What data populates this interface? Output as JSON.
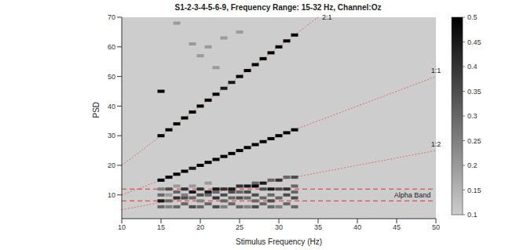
{
  "chart_data": {
    "type": "heatmap",
    "title": "S1-2-3-4-5-6-9, Frequency Range: 15-32 Hz, Channel:Oz",
    "x_label": "Stimulus Frequency (Hz)",
    "y_label": "PSD",
    "xlim": [
      10,
      50
    ],
    "xticks": [
      10,
      15,
      20,
      25,
      30,
      35,
      40,
      45,
      50
    ],
    "ylim": [
      2,
      70
    ],
    "yticks": [
      10,
      20,
      30,
      40,
      50,
      60,
      70
    ],
    "cells": [
      [
        15,
        30,
        0.5
      ],
      [
        15,
        15,
        0.5
      ],
      [
        15,
        45,
        0.5
      ],
      [
        15,
        12,
        0.25
      ],
      [
        15,
        10,
        0.3
      ],
      [
        15,
        8,
        0.45
      ],
      [
        15,
        6,
        0.3
      ],
      [
        16,
        32,
        0.5
      ],
      [
        16,
        16,
        0.5
      ],
      [
        16,
        12,
        0.35
      ],
      [
        16,
        10,
        0.2
      ],
      [
        16,
        8,
        0.3
      ],
      [
        16,
        6,
        0.25
      ],
      [
        17,
        34,
        0.5
      ],
      [
        17,
        17,
        0.5
      ],
      [
        17,
        68,
        0.2
      ],
      [
        17,
        13,
        0.2
      ],
      [
        17,
        11,
        0.3
      ],
      [
        17,
        9,
        0.4
      ],
      [
        17,
        6,
        0.3
      ],
      [
        18,
        36,
        0.5
      ],
      [
        18,
        18,
        0.5
      ],
      [
        18,
        12,
        0.4
      ],
      [
        18,
        10,
        0.25
      ],
      [
        18,
        9,
        0.35
      ],
      [
        18,
        7,
        0.3
      ],
      [
        19,
        38,
        0.5
      ],
      [
        19,
        19,
        0.45
      ],
      [
        19,
        61,
        0.2
      ],
      [
        19,
        13,
        0.2
      ],
      [
        19,
        11,
        0.45
      ],
      [
        19,
        9,
        0.3
      ],
      [
        19,
        6,
        0.35
      ],
      [
        20,
        40,
        0.5
      ],
      [
        20,
        20,
        0.5
      ],
      [
        20,
        57,
        0.2
      ],
      [
        20,
        12,
        0.4
      ],
      [
        20,
        10,
        0.35
      ],
      [
        20,
        8,
        0.25
      ],
      [
        20,
        6,
        0.3
      ],
      [
        21,
        42,
        0.5
      ],
      [
        21,
        21,
        0.5
      ],
      [
        21,
        60,
        0.2
      ],
      [
        21,
        14,
        0.2
      ],
      [
        21,
        11,
        0.45
      ],
      [
        21,
        10,
        0.3
      ],
      [
        21,
        7,
        0.3
      ],
      [
        22,
        44,
        0.5
      ],
      [
        22,
        22,
        0.5
      ],
      [
        22,
        53,
        0.2
      ],
      [
        22,
        12,
        0.45
      ],
      [
        22,
        11,
        0.3
      ],
      [
        22,
        9,
        0.4
      ],
      [
        22,
        6,
        0.35
      ],
      [
        23,
        46,
        0.45
      ],
      [
        23,
        23,
        0.5
      ],
      [
        23,
        63,
        0.2
      ],
      [
        23,
        12,
        0.4
      ],
      [
        23,
        10,
        0.35
      ],
      [
        23,
        8,
        0.3
      ],
      [
        23,
        6,
        0.25
      ],
      [
        24,
        48,
        0.45
      ],
      [
        24,
        24,
        0.5
      ],
      [
        24,
        12,
        0.45
      ],
      [
        24,
        11,
        0.35
      ],
      [
        24,
        9,
        0.3
      ],
      [
        24,
        7,
        0.3
      ],
      [
        25,
        50,
        0.5
      ],
      [
        25,
        25,
        0.5
      ],
      [
        25,
        65,
        0.2
      ],
      [
        25,
        13,
        0.4
      ],
      [
        25,
        11,
        0.3
      ],
      [
        25,
        9,
        0.35
      ],
      [
        25,
        6,
        0.3
      ],
      [
        26,
        52,
        0.5
      ],
      [
        26,
        26,
        0.5
      ],
      [
        26,
        13,
        0.45
      ],
      [
        26,
        11,
        0.35
      ],
      [
        26,
        9,
        0.3
      ],
      [
        26,
        6,
        0.25
      ],
      [
        27,
        54,
        0.5
      ],
      [
        27,
        27,
        0.5
      ],
      [
        27,
        14,
        0.3
      ],
      [
        27,
        13,
        0.5
      ],
      [
        27,
        10,
        0.35
      ],
      [
        27,
        8,
        0.3
      ],
      [
        27,
        6,
        0.35
      ],
      [
        28,
        56,
        0.5
      ],
      [
        28,
        28,
        0.5
      ],
      [
        28,
        14,
        0.45
      ],
      [
        28,
        12,
        0.35
      ],
      [
        28,
        9,
        0.3
      ],
      [
        28,
        7,
        0.3
      ],
      [
        29,
        58,
        0.5
      ],
      [
        29,
        29,
        0.5
      ],
      [
        29,
        15,
        0.3
      ],
      [
        29,
        12,
        0.45
      ],
      [
        29,
        10,
        0.3
      ],
      [
        29,
        8,
        0.35
      ],
      [
        29,
        6,
        0.3
      ],
      [
        30,
        60,
        0.5
      ],
      [
        30,
        30,
        0.5
      ],
      [
        30,
        15,
        0.4
      ],
      [
        30,
        12,
        0.35
      ],
      [
        30,
        9,
        0.3
      ],
      [
        30,
        6,
        0.25
      ],
      [
        31,
        62,
        0.5
      ],
      [
        31,
        31,
        0.5
      ],
      [
        31,
        16,
        0.3
      ],
      [
        31,
        12,
        0.4
      ],
      [
        31,
        10,
        0.35
      ],
      [
        31,
        7,
        0.3
      ],
      [
        32,
        64,
        0.5
      ],
      [
        32,
        32,
        0.5
      ],
      [
        32,
        16,
        0.35
      ],
      [
        32,
        13,
        0.3
      ],
      [
        32,
        11,
        0.3
      ],
      [
        32,
        9,
        0.35
      ],
      [
        32,
        6,
        0.3
      ]
    ],
    "colorbar": {
      "range": [
        0.1,
        0.5
      ],
      "ticks": [
        0.1,
        0.15,
        0.2,
        0.25,
        0.3,
        0.35,
        0.4,
        0.45,
        0.5
      ]
    },
    "ratio_lines": [
      {
        "label": "2:1",
        "x": [
          10,
          35
        ],
        "y": [
          20,
          70
        ],
        "color": "#e07070",
        "line_style": "dotted"
      },
      {
        "label": "1:1",
        "x": [
          10,
          50
        ],
        "y": [
          10,
          50
        ],
        "color": "#e07070",
        "line_style": "dotted"
      },
      {
        "label": "1:2",
        "x": [
          10,
          50
        ],
        "y": [
          5,
          25
        ],
        "color": "#e07070",
        "line_style": "dotted"
      }
    ],
    "band_lines": {
      "y": [
        8,
        12
      ],
      "color": "#e03030",
      "line_style": "dashed"
    },
    "annotations": [
      {
        "text": "Alpha Band",
        "x": 47,
        "y": 10
      }
    ]
  }
}
